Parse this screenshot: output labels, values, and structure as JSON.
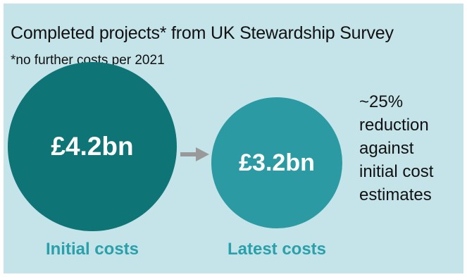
{
  "title": "Completed projects* from UK Stewardship Survey",
  "subtitle": "*no further costs per 2021",
  "colors": {
    "background": "#c4e4e9",
    "initial_circle": "#0e7475",
    "latest_circle": "#2b9aa3",
    "category_label": "#2aa0aa",
    "arrow": "#999999"
  },
  "chart_data": {
    "type": "bubble",
    "title": "Completed projects* from UK Stewardship Survey",
    "subtitle": "*no further costs per 2021",
    "unit": "£bn",
    "categories": [
      "Initial costs",
      "Latest costs"
    ],
    "values": [
      4.2,
      3.2
    ],
    "value_labels": [
      "£4.2bn",
      "£3.2bn"
    ],
    "annotation": {
      "lines": [
        "~25%",
        "reduction",
        "against",
        "initial cost",
        "estimates"
      ]
    }
  }
}
